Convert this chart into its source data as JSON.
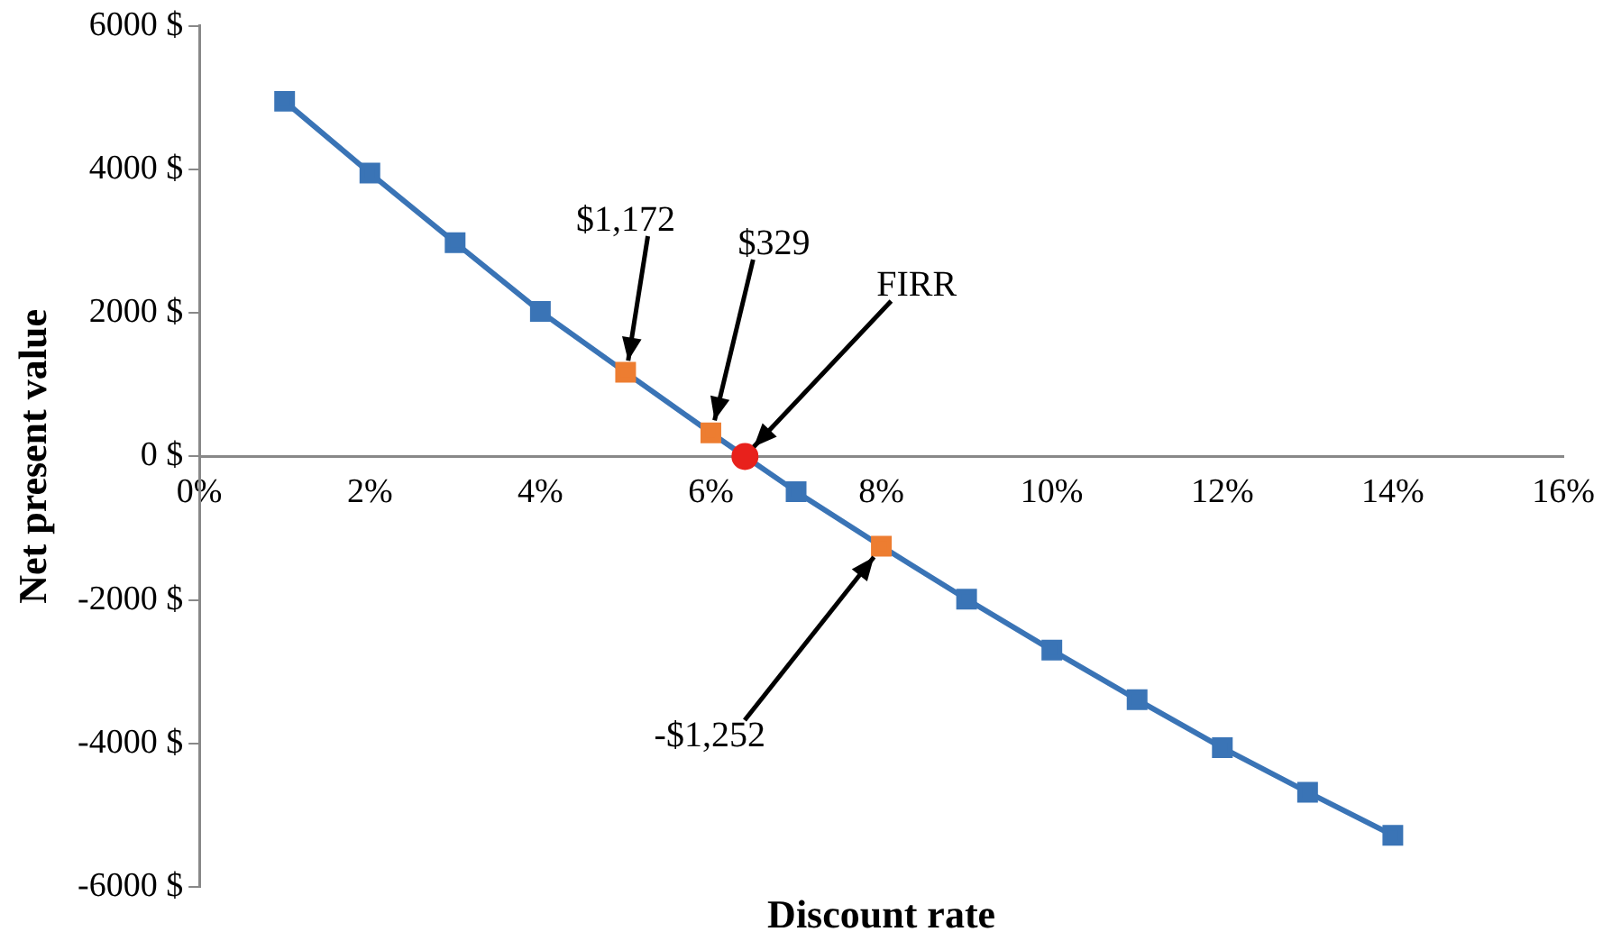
{
  "chart_data": {
    "type": "line",
    "xlabel": "Discount rate",
    "ylabel": "Net present value",
    "x": [
      1,
      2,
      3,
      4,
      5,
      6,
      7,
      8,
      9,
      10,
      11,
      12,
      13,
      14
    ],
    "series": [
      {
        "color": "#3a74b6",
        "colors": [
          "#3a74b6",
          "#3a74b6",
          "#3a74b6",
          "#3a74b6",
          "#ed7d31",
          "#ed7d31",
          "#3a74b6",
          "#ed7d31",
          "#3a74b6",
          "#3a74b6",
          "#3a74b6",
          "#3a74b6",
          "#3a74b6",
          "#3a74b6"
        ],
        "marker": "square",
        "values": [
          4950,
          3950,
          2980,
          2020,
          1172,
          329,
          -490,
          -1252,
          -1990,
          -2700,
          -3390,
          -4060,
          -4680,
          -5280
        ]
      },
      {
        "type": "scatter",
        "color": "#e8211c",
        "marker": "circle",
        "x": [
          6.4
        ],
        "values": [
          0
        ]
      }
    ],
    "xlim": [
      0,
      16
    ],
    "xticks": [
      {
        "value": 0,
        "label": "0%"
      },
      {
        "value": 2,
        "label": "2%"
      },
      {
        "value": 4,
        "label": "4%"
      },
      {
        "value": 6,
        "label": "6%"
      },
      {
        "value": 8,
        "label": "8%"
      },
      {
        "value": 10,
        "label": "10%"
      },
      {
        "value": 12,
        "label": "12%"
      },
      {
        "value": 14,
        "label": "14%"
      },
      {
        "value": 16,
        "label": "16%"
      }
    ],
    "ylim": [
      -6000,
      6000
    ],
    "yticks": [
      {
        "value": -6000,
        "label": "-6000 $"
      },
      {
        "value": -4000,
        "label": "-4000 $"
      },
      {
        "value": -2000,
        "label": "-2000 $"
      },
      {
        "value": 0,
        "label": "0 $"
      },
      {
        "value": 2000,
        "label": "2000 $"
      },
      {
        "value": 4000,
        "label": "4000 $"
      },
      {
        "value": 6000,
        "label": "6000 $"
      }
    ],
    "annotations": [
      {
        "text": "$1,172",
        "x": 5,
        "y": 1172
      },
      {
        "text": "$329",
        "x": 6,
        "y": 329
      },
      {
        "text": "FIRR",
        "x": 6.4,
        "y": 0
      },
      {
        "text": "-$1,252",
        "x": 8,
        "y": -1252
      }
    ],
    "grid": false,
    "legend": false
  }
}
